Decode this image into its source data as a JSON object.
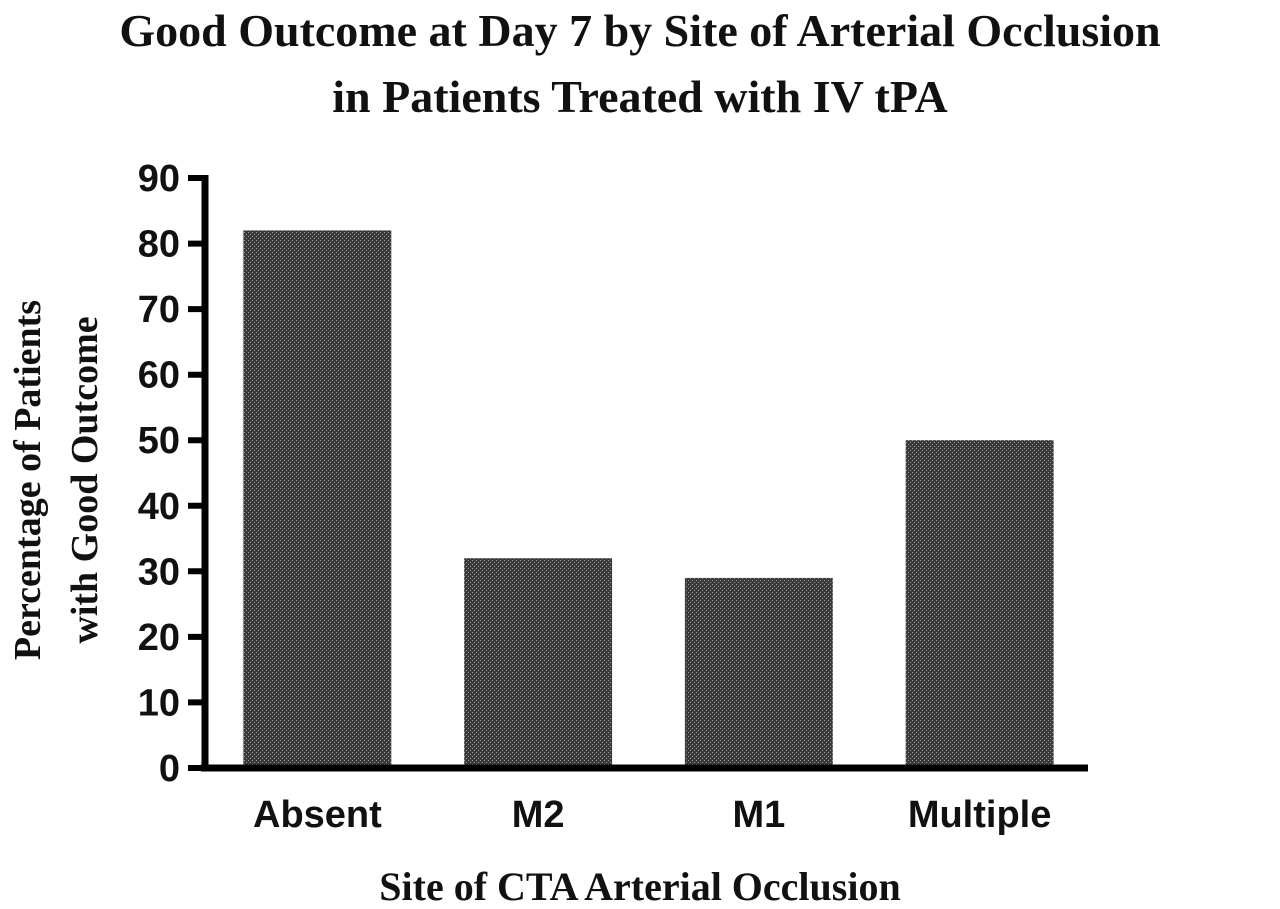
{
  "chart_data": {
    "type": "bar",
    "title": [
      "Good Outcome at Day 7 by Site of Arterial Occlusion",
      "in Patients Treated with IV tPA"
    ],
    "xlabel": "Site of CTA Arterial Occlusion",
    "ylabel": [
      "Percentage of Patients",
      "with Good Outcome"
    ],
    "categories": [
      "Absent",
      "M2",
      "M1",
      "Multiple"
    ],
    "values": [
      82,
      32,
      29,
      50
    ],
    "ylim": [
      0,
      90
    ],
    "yticks": [
      0,
      10,
      20,
      30,
      40,
      50,
      60,
      70,
      80,
      90
    ],
    "grid": false,
    "legend": "none",
    "colors": {
      "bar_fill": "#3a3a3a",
      "bar_stipple": "#9a9a9a",
      "axis": "#000000",
      "text": "#111111"
    }
  }
}
